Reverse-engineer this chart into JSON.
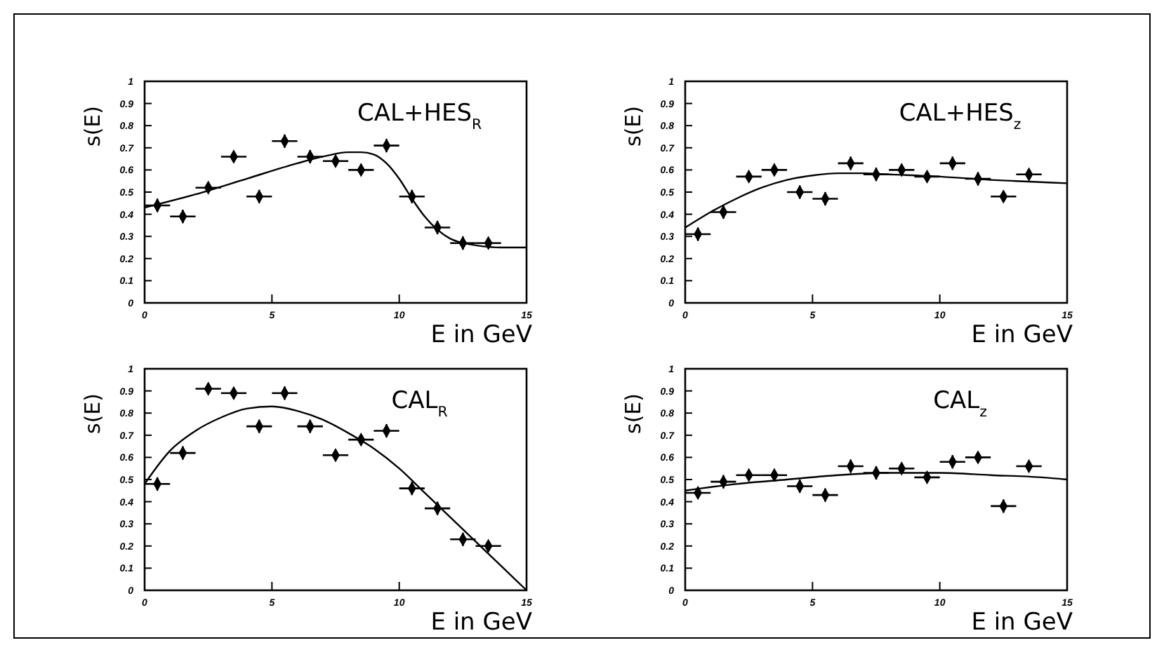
{
  "chart_data": [
    {
      "type": "scatter",
      "annotations": [
        "CAL+HES$_{R}$"
      ],
      "xlabel": "E in GeV",
      "ylabel": "s(E)",
      "xlim": [
        0,
        15
      ],
      "ylim": [
        0,
        1
      ],
      "xticks": [
        0,
        5,
        10,
        15
      ],
      "yticks": [
        0,
        0.1,
        0.2,
        0.3,
        0.4,
        0.5,
        0.6,
        0.7,
        0.8,
        0.9,
        1
      ],
      "series": [
        {
          "marker": "diamond",
          "color": "#000000",
          "x": [
            0.5,
            1.5,
            2.5,
            3.5,
            4.5,
            5.5,
            6.5,
            7.5,
            8.5,
            9.5,
            10.5,
            11.5,
            12.5,
            13.5
          ],
          "values": [
            0.44,
            0.39,
            0.52,
            0.66,
            0.48,
            0.73,
            0.66,
            0.64,
            0.6,
            0.71,
            0.48,
            0.34,
            0.27,
            0.27
          ],
          "errors": [
            0.03,
            0.03,
            0.02,
            0.02,
            0.03,
            0.03,
            0.03,
            0.02,
            0.02,
            0.03,
            0.03,
            0.03,
            0.03,
            0.02
          ],
          "xerrors": [
            0.5,
            0.5,
            0.5,
            0.5,
            0.5,
            0.5,
            0.5,
            0.5,
            0.5,
            0.5,
            0.5,
            0.5,
            0.5,
            0.5
          ]
        },
        {
          "type": "line",
          "color": "#000000",
          "line_style": "solid",
          "x": [
            0,
            2,
            4,
            6,
            7,
            8,
            8.5,
            9,
            9.5,
            10,
            10.5,
            11,
            11.5,
            12,
            12.5,
            13,
            14,
            15
          ],
          "values": [
            0.43,
            0.49,
            0.56,
            0.63,
            0.66,
            0.68,
            0.68,
            0.67,
            0.63,
            0.56,
            0.47,
            0.39,
            0.33,
            0.29,
            0.27,
            0.26,
            0.25,
            0.25
          ]
        }
      ]
    },
    {
      "type": "scatter",
      "annotations": [
        "CAL+HES$_{z}$"
      ],
      "xlabel": "E in GeV",
      "ylabel": "s(E)",
      "xlim": [
        0,
        15
      ],
      "ylim": [
        0,
        1
      ],
      "xticks": [
        0,
        5,
        10,
        15
      ],
      "yticks": [
        0,
        0.1,
        0.2,
        0.3,
        0.4,
        0.5,
        0.6,
        0.7,
        0.8,
        0.9,
        1
      ],
      "series": [
        {
          "marker": "diamond",
          "color": "#000000",
          "x": [
            0.5,
            1.5,
            2.5,
            3.5,
            4.5,
            5.5,
            6.5,
            7.5,
            8.5,
            9.5,
            10.5,
            11.5,
            12.5,
            13.5
          ],
          "values": [
            0.31,
            0.41,
            0.57,
            0.6,
            0.5,
            0.47,
            0.63,
            0.58,
            0.6,
            0.57,
            0.63,
            0.56,
            0.48,
            0.58
          ],
          "errors": [
            0.03,
            0.03,
            0.01,
            0.02,
            0.03,
            0.03,
            0.03,
            0.03,
            0.02,
            0.02,
            0.03,
            0.03,
            0.02,
            0.02
          ],
          "xerrors": [
            0.5,
            0.5,
            0.5,
            0.5,
            0.5,
            0.5,
            0.5,
            0.5,
            0.5,
            0.5,
            0.5,
            0.5,
            0.5,
            0.5
          ]
        },
        {
          "type": "line",
          "color": "#000000",
          "line_style": "solid",
          "x": [
            0,
            1,
            2,
            3,
            4,
            5,
            6,
            7,
            8,
            10,
            12,
            13,
            15
          ],
          "values": [
            0.34,
            0.41,
            0.47,
            0.52,
            0.555,
            0.575,
            0.585,
            0.585,
            0.58,
            0.57,
            0.555,
            0.55,
            0.54
          ]
        }
      ]
    },
    {
      "type": "scatter",
      "annotations": [
        "CAL$_{R}$"
      ],
      "xlabel": "E in GeV",
      "ylabel": "s(E)",
      "xlim": [
        0,
        15
      ],
      "ylim": [
        0,
        1
      ],
      "xticks": [
        0,
        5,
        10,
        15
      ],
      "yticks": [
        0,
        0.1,
        0.2,
        0.3,
        0.4,
        0.5,
        0.6,
        0.7,
        0.8,
        0.9,
        1
      ],
      "series": [
        {
          "marker": "diamond",
          "color": "#000000",
          "x": [
            0.5,
            1.5,
            2.5,
            3.5,
            4.5,
            5.5,
            6.5,
            7.5,
            8.5,
            9.5,
            10.5,
            11.5,
            12.5,
            13.5
          ],
          "values": [
            0.48,
            0.62,
            0.91,
            0.89,
            0.74,
            0.89,
            0.74,
            0.61,
            0.68,
            0.72,
            0.46,
            0.37,
            0.23,
            0.2
          ],
          "errors": [
            0.03,
            0.03,
            0.01,
            0.01,
            0.03,
            0.03,
            0.03,
            0.01,
            0.02,
            0.03,
            0.03,
            0.03,
            0.03,
            0.02
          ],
          "xerrors": [
            0.5,
            0.5,
            0.5,
            0.5,
            0.5,
            0.5,
            0.5,
            0.5,
            0.5,
            0.5,
            0.5,
            0.5,
            0.5,
            0.5
          ]
        },
        {
          "type": "line",
          "color": "#000000",
          "line_style": "solid",
          "x": [
            0,
            1,
            2,
            3,
            4,
            5,
            6,
            7,
            8,
            9,
            10,
            11,
            12,
            13,
            14,
            15
          ],
          "values": [
            0.48,
            0.63,
            0.72,
            0.78,
            0.82,
            0.83,
            0.81,
            0.77,
            0.71,
            0.64,
            0.55,
            0.44,
            0.33,
            0.22,
            0.11,
            0
          ]
        }
      ]
    },
    {
      "type": "scatter",
      "annotations": [
        "CAL$_{z}$"
      ],
      "xlabel": "E in GeV",
      "ylabel": "s(E)",
      "xlim": [
        0,
        15
      ],
      "ylim": [
        0,
        1
      ],
      "xticks": [
        0,
        5,
        10,
        15
      ],
      "yticks": [
        0,
        0.1,
        0.2,
        0.3,
        0.4,
        0.5,
        0.6,
        0.7,
        0.8,
        0.9,
        1
      ],
      "series": [
        {
          "marker": "diamond",
          "color": "#000000",
          "x": [
            0.5,
            1.5,
            2.5,
            3.5,
            4.5,
            5.5,
            6.5,
            7.5,
            8.5,
            9.5,
            10.5,
            11.5,
            12.5,
            13.5
          ],
          "values": [
            0.44,
            0.49,
            0.52,
            0.52,
            0.47,
            0.43,
            0.56,
            0.53,
            0.55,
            0.51,
            0.58,
            0.6,
            0.38,
            0.56
          ],
          "errors": [
            0.02,
            0.03,
            0.02,
            0.02,
            0.03,
            0.03,
            0.03,
            0.03,
            0.01,
            0.01,
            0.03,
            0.02,
            0.03,
            0.02
          ],
          "xerrors": [
            0.5,
            0.5,
            0.5,
            0.5,
            0.5,
            0.5,
            0.5,
            0.5,
            0.5,
            0.5,
            0.5,
            0.5,
            0.5,
            0.5
          ]
        },
        {
          "type": "line",
          "color": "#000000",
          "line_style": "solid",
          "x": [
            0,
            2,
            4,
            6,
            8,
            10,
            12,
            14,
            15
          ],
          "values": [
            0.45,
            0.48,
            0.5,
            0.52,
            0.53,
            0.53,
            0.52,
            0.51,
            0.5
          ]
        }
      ]
    }
  ]
}
